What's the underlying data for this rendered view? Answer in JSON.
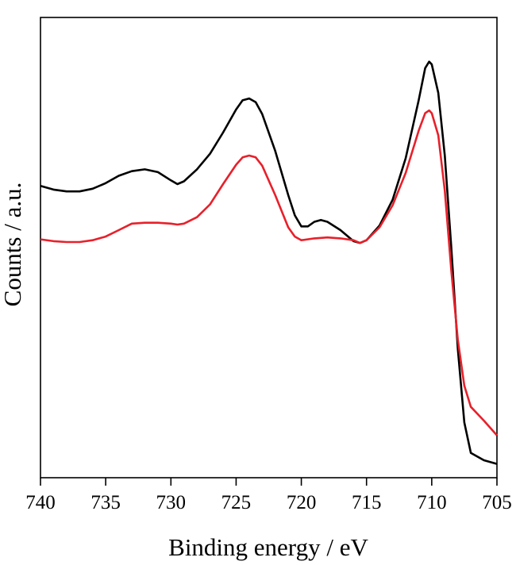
{
  "chart_data": {
    "type": "line",
    "title": "",
    "xlabel": "Binding energy / eV",
    "ylabel": "Counts / a.u.",
    "xlim": [
      740,
      705
    ],
    "x_reversed": true,
    "ylim": [
      0,
      100
    ],
    "y_ticks_shown": false,
    "x_ticks": [
      "740",
      "735",
      "730",
      "725",
      "720",
      "715",
      "710",
      "705"
    ],
    "x_tick_values": [
      740,
      735,
      730,
      725,
      720,
      715,
      710,
      705
    ],
    "grid": false,
    "legend": "none",
    "series": [
      {
        "color": "#000000",
        "points": [
          [
            740,
            63.4
          ],
          [
            739,
            62.6
          ],
          [
            738,
            62.2
          ],
          [
            737,
            62.2
          ],
          [
            736,
            62.8
          ],
          [
            735,
            64.0
          ],
          [
            734,
            65.6
          ],
          [
            733,
            66.6
          ],
          [
            732,
            67.0
          ],
          [
            731,
            66.4
          ],
          [
            730,
            64.6
          ],
          [
            729.5,
            63.8
          ],
          [
            729,
            64.4
          ],
          [
            728,
            67.0
          ],
          [
            727,
            70.4
          ],
          [
            726,
            75.0
          ],
          [
            725,
            80.0
          ],
          [
            724.5,
            82.0
          ],
          [
            724,
            82.4
          ],
          [
            723.5,
            81.6
          ],
          [
            723,
            79.0
          ],
          [
            722,
            71.0
          ],
          [
            721,
            61.4
          ],
          [
            720.5,
            57.0
          ],
          [
            720,
            54.6
          ],
          [
            719.5,
            54.6
          ],
          [
            719,
            55.6
          ],
          [
            718.5,
            56.0
          ],
          [
            718,
            55.6
          ],
          [
            717,
            53.8
          ],
          [
            716,
            51.4
          ],
          [
            715.5,
            51.0
          ],
          [
            715,
            51.6
          ],
          [
            714,
            54.8
          ],
          [
            713,
            60.4
          ],
          [
            712,
            69.4
          ],
          [
            711,
            82.0
          ],
          [
            710.5,
            89.0
          ],
          [
            710.2,
            90.4
          ],
          [
            710,
            89.8
          ],
          [
            709.5,
            83.6
          ],
          [
            709,
            70.0
          ],
          [
            708.5,
            50.0
          ],
          [
            708,
            28.0
          ],
          [
            707.5,
            12.0
          ],
          [
            707,
            5.4
          ],
          [
            706,
            3.8
          ],
          [
            705,
            3.0
          ]
        ]
      },
      {
        "color": "#e8202a",
        "points": [
          [
            740,
            51.8
          ],
          [
            739,
            51.4
          ],
          [
            738,
            51.2
          ],
          [
            737,
            51.2
          ],
          [
            736,
            51.6
          ],
          [
            735,
            52.4
          ],
          [
            734,
            53.8
          ],
          [
            733,
            55.2
          ],
          [
            732,
            55.4
          ],
          [
            731,
            55.4
          ],
          [
            730,
            55.2
          ],
          [
            729.5,
            55.0
          ],
          [
            729,
            55.2
          ],
          [
            728,
            56.6
          ],
          [
            727,
            59.4
          ],
          [
            726,
            63.8
          ],
          [
            725,
            68.0
          ],
          [
            724.5,
            69.6
          ],
          [
            724,
            70.0
          ],
          [
            723.5,
            69.6
          ],
          [
            723,
            67.8
          ],
          [
            722,
            61.4
          ],
          [
            721,
            54.4
          ],
          [
            720.5,
            52.4
          ],
          [
            720,
            51.6
          ],
          [
            719,
            52.0
          ],
          [
            718,
            52.2
          ],
          [
            717,
            52.0
          ],
          [
            716,
            51.6
          ],
          [
            715.5,
            51.0
          ],
          [
            715,
            51.6
          ],
          [
            714,
            54.4
          ],
          [
            713,
            59.2
          ],
          [
            712,
            66.2
          ],
          [
            711,
            75.4
          ],
          [
            710.5,
            79.2
          ],
          [
            710.2,
            79.8
          ],
          [
            710,
            79.2
          ],
          [
            709.5,
            74.4
          ],
          [
            709,
            62.4
          ],
          [
            708.5,
            45.0
          ],
          [
            708,
            30.0
          ],
          [
            707.5,
            20.0
          ],
          [
            707,
            15.4
          ],
          [
            706,
            12.4
          ],
          [
            705,
            9.2
          ]
        ]
      }
    ]
  }
}
